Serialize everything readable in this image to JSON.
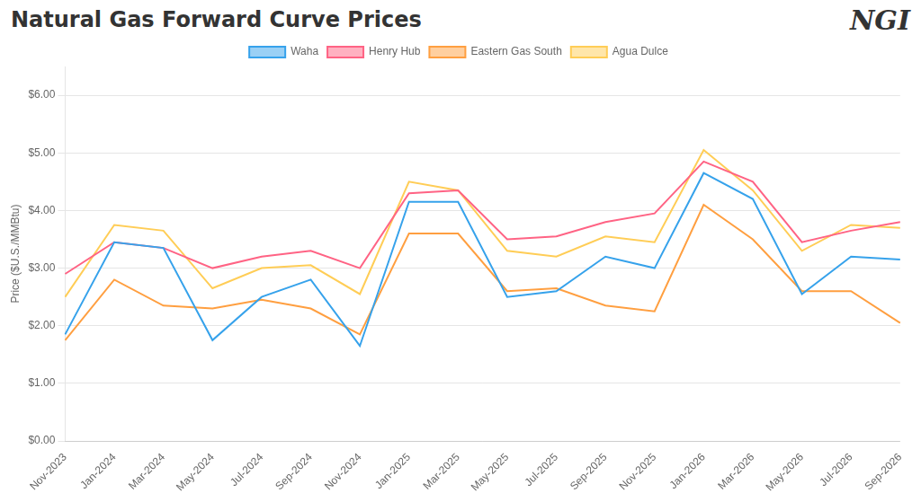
{
  "chart_data": {
    "type": "line",
    "title": "Natural Gas Forward Curve Prices",
    "ylabel": "Price ($U.S./MMBtu)",
    "annotations": [
      "NGI"
    ],
    "categories": [
      "Nov-2023",
      "Jan-2024",
      "Mar-2024",
      "May-2024",
      "Jul-2024",
      "Sep-2024",
      "Nov-2024",
      "Jan-2025",
      "Mar-2025",
      "May-2025",
      "Jul-2025",
      "Sep-2025",
      "Nov-2025",
      "Jan-2026",
      "Mar-2026",
      "May-2026",
      "Jul-2026",
      "Sep-2026"
    ],
    "series": [
      {
        "name": "Waha",
        "values": [
          1.85,
          3.45,
          3.35,
          1.75,
          2.5,
          2.8,
          1.65,
          4.15,
          4.15,
          2.5,
          2.6,
          3.2,
          3.0,
          4.65,
          4.2,
          2.55,
          3.2,
          3.15
        ]
      },
      {
        "name": "Henry Hub",
        "values": [
          2.9,
          3.45,
          3.35,
          3.0,
          3.2,
          3.3,
          3.0,
          4.3,
          4.35,
          3.5,
          3.55,
          3.8,
          3.95,
          4.85,
          4.5,
          3.45,
          3.65,
          3.8
        ]
      },
      {
        "name": "Eastern Gas South",
        "values": [
          1.75,
          2.8,
          2.35,
          2.3,
          2.45,
          2.3,
          1.85,
          3.6,
          3.6,
          2.6,
          2.65,
          2.35,
          2.25,
          4.1,
          3.5,
          2.6,
          2.6,
          2.05
        ]
      },
      {
        "name": "Agua Dulce",
        "values": [
          2.5,
          3.75,
          3.65,
          2.65,
          3.0,
          3.05,
          2.55,
          4.5,
          4.35,
          3.3,
          3.2,
          3.55,
          3.45,
          5.05,
          4.35,
          3.3,
          3.75,
          3.7
        ]
      }
    ],
    "ylim": [
      0.0,
      6.5
    ],
    "yticks": [
      {
        "value": 0,
        "label": "$0.00"
      },
      {
        "value": 1,
        "label": "$1.00"
      },
      {
        "value": 2,
        "label": "$2.00"
      },
      {
        "value": 3,
        "label": "$3.00"
      },
      {
        "value": 4,
        "label": "$4.00"
      },
      {
        "value": 5,
        "label": "$5.00"
      },
      {
        "value": 6,
        "label": "$6.00"
      }
    ],
    "grid": true,
    "legend": "top"
  }
}
